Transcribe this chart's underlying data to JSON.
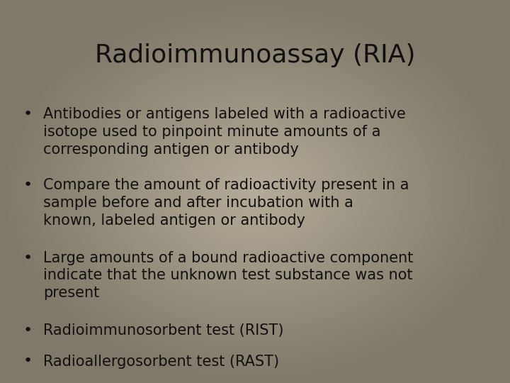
{
  "title": "Radioimmunoassay (RIA)",
  "bullet_points": [
    "Antibodies or antigens labeled with a radioactive\nisotope used to pinpoint minute amounts of a\ncorresponding antigen or antibody",
    "Compare the amount of radioactivity present in a\nsample before and after incubation with a\nknown, labeled antigen or antibody",
    "Large amounts of a bound radioactive component\nindicate that the unknown test substance was not\npresent",
    "Radioimmunosorbent test (RIST)",
    "Radioallergosorbent test (RAST)"
  ],
  "bg_light": "#c8c0ac",
  "bg_center": "#b0a890",
  "bg_dark": "#888070",
  "text_color": "#111111",
  "title_fontsize": 26,
  "bullet_fontsize": 15,
  "bullet_symbol": "•",
  "fig_width": 7.2,
  "fig_height": 5.4
}
